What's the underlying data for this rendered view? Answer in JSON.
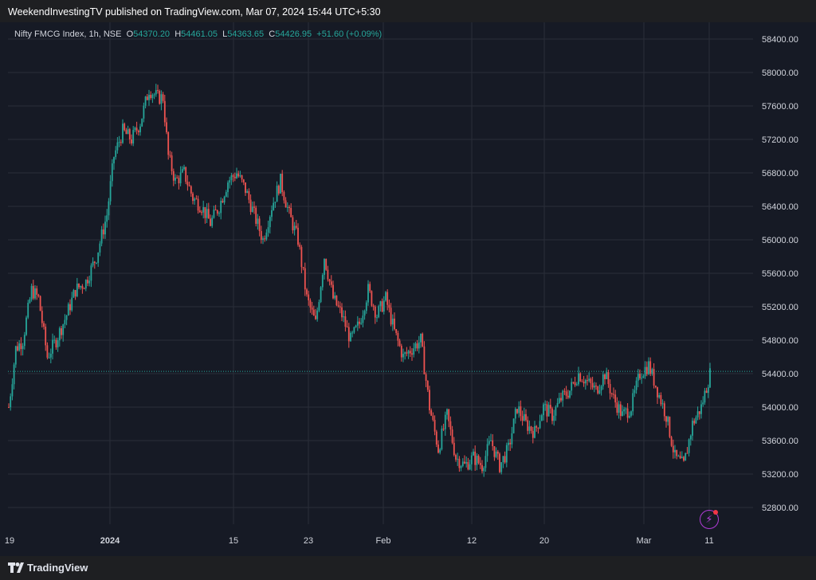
{
  "header": {
    "published_text": "WeekendInvestingTV published on TradingView.com, Mar 07, 2024 15:44 UTC+5:30"
  },
  "legend": {
    "symbol": "Nifty FMCG Index, 1h, NSE",
    "o_label": "O",
    "o_value": "54370.20",
    "h_label": "H",
    "h_value": "54461.05",
    "l_label": "L",
    "l_value": "54363.65",
    "c_label": "C",
    "c_value": "54426.95",
    "change": "+51.60 (+0.09%)"
  },
  "footer": {
    "brand": "TradingView",
    "logo_icon": "tradingview-logo-icon"
  },
  "colors": {
    "up": "#26a69a",
    "down": "#ef5350",
    "background": "#161a25",
    "grid": "#2a2e39",
    "last_price": "#26a69a"
  },
  "chart_data": {
    "type": "candlestick",
    "symbol": "Nifty FMCG Index",
    "interval": "1h",
    "exchange": "NSE",
    "ylim": [
      52600,
      58600
    ],
    "y_ticks": [
      52800,
      53200,
      53600,
      54000,
      54400,
      54800,
      55200,
      55600,
      56000,
      56400,
      56800,
      57200,
      57600,
      58000,
      58400
    ],
    "y_tick_labels": [
      "52800.00",
      "53200.00",
      "53600.00",
      "54000.00",
      "54400.00",
      "54800.00",
      "55200.00",
      "55600.00",
      "56000.00",
      "56400.00",
      "56800.00",
      "57200.00",
      "57600.00",
      "58000.00",
      "58400.00"
    ],
    "x_ticks": [
      {
        "label": "19",
        "bold": false
      },
      {
        "label": "2024",
        "bold": true
      },
      {
        "label": "15",
        "bold": false
      },
      {
        "label": "23",
        "bold": false
      },
      {
        "label": "Feb",
        "bold": false
      },
      {
        "label": "12",
        "bold": false
      },
      {
        "label": "20",
        "bold": false
      },
      {
        "label": "Mar",
        "bold": false
      },
      {
        "label": "11",
        "bold": false
      }
    ],
    "last_price": 54426.95,
    "grid": true,
    "approx_path": [
      {
        "x": 0,
        "y": 54000
      },
      {
        "x": 4,
        "y": 54700
      },
      {
        "x": 8,
        "y": 54800
      },
      {
        "x": 13,
        "y": 55400
      },
      {
        "x": 17,
        "y": 55300
      },
      {
        "x": 22,
        "y": 54600
      },
      {
        "x": 27,
        "y": 54800
      },
      {
        "x": 33,
        "y": 55100
      },
      {
        "x": 38,
        "y": 55400
      },
      {
        "x": 44,
        "y": 55500
      },
      {
        "x": 50,
        "y": 55800
      },
      {
        "x": 56,
        "y": 56300
      },
      {
        "x": 60,
        "y": 57000
      },
      {
        "x": 65,
        "y": 57300
      },
      {
        "x": 70,
        "y": 57200
      },
      {
        "x": 75,
        "y": 57400
      },
      {
        "x": 80,
        "y": 57800
      },
      {
        "x": 85,
        "y": 57700
      },
      {
        "x": 88,
        "y": 57700
      },
      {
        "x": 91,
        "y": 57000
      },
      {
        "x": 95,
        "y": 56700
      },
      {
        "x": 100,
        "y": 56800
      },
      {
        "x": 105,
        "y": 56500
      },
      {
        "x": 110,
        "y": 56400
      },
      {
        "x": 115,
        "y": 56200
      },
      {
        "x": 120,
        "y": 56400
      },
      {
        "x": 125,
        "y": 56700
      },
      {
        "x": 130,
        "y": 56800
      },
      {
        "x": 135,
        "y": 56600
      },
      {
        "x": 140,
        "y": 56300
      },
      {
        "x": 145,
        "y": 56000
      },
      {
        "x": 150,
        "y": 56400
      },
      {
        "x": 155,
        "y": 56700
      },
      {
        "x": 160,
        "y": 56300
      },
      {
        "x": 165,
        "y": 56000
      },
      {
        "x": 170,
        "y": 55300
      },
      {
        "x": 175,
        "y": 55000
      },
      {
        "x": 180,
        "y": 55800
      },
      {
        "x": 185,
        "y": 55300
      },
      {
        "x": 190,
        "y": 55100
      },
      {
        "x": 195,
        "y": 54800
      },
      {
        "x": 200,
        "y": 55000
      },
      {
        "x": 205,
        "y": 55400
      },
      {
        "x": 210,
        "y": 55100
      },
      {
        "x": 215,
        "y": 55300
      },
      {
        "x": 220,
        "y": 54900
      },
      {
        "x": 225,
        "y": 54600
      },
      {
        "x": 230,
        "y": 54700
      },
      {
        "x": 235,
        "y": 54800
      },
      {
        "x": 240,
        "y": 54000
      },
      {
        "x": 245,
        "y": 53500
      },
      {
        "x": 250,
        "y": 53900
      },
      {
        "x": 255,
        "y": 53400
      },
      {
        "x": 260,
        "y": 53300
      },
      {
        "x": 265,
        "y": 53400
      },
      {
        "x": 270,
        "y": 53300
      },
      {
        "x": 275,
        "y": 53600
      },
      {
        "x": 280,
        "y": 53300
      },
      {
        "x": 285,
        "y": 53500
      },
      {
        "x": 290,
        "y": 54000
      },
      {
        "x": 295,
        "y": 53800
      },
      {
        "x": 300,
        "y": 53700
      },
      {
        "x": 305,
        "y": 54000
      },
      {
        "x": 310,
        "y": 53900
      },
      {
        "x": 315,
        "y": 54100
      },
      {
        "x": 320,
        "y": 54200
      },
      {
        "x": 325,
        "y": 54400
      },
      {
        "x": 330,
        "y": 54300
      },
      {
        "x": 335,
        "y": 54200
      },
      {
        "x": 340,
        "y": 54400
      },
      {
        "x": 345,
        "y": 54100
      },
      {
        "x": 350,
        "y": 53900
      },
      {
        "x": 355,
        "y": 54000
      },
      {
        "x": 360,
        "y": 54400
      },
      {
        "x": 365,
        "y": 54500
      },
      {
        "x": 370,
        "y": 54200
      },
      {
        "x": 375,
        "y": 53900
      },
      {
        "x": 380,
        "y": 53400
      },
      {
        "x": 385,
        "y": 53300
      },
      {
        "x": 390,
        "y": 53800
      },
      {
        "x": 395,
        "y": 54000
      },
      {
        "x": 400,
        "y": 54400
      }
    ]
  }
}
